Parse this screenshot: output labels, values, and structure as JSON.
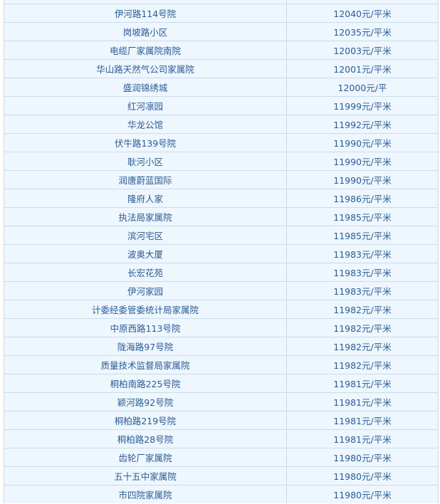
{
  "table": {
    "rows": [
      {
        "name": "伊河路114号院",
        "price": "12040元/平米"
      },
      {
        "name": "岗坡路小区",
        "price": "12035元/平米"
      },
      {
        "name": "电缆厂家属院南院",
        "price": "12003元/平米"
      },
      {
        "name": "华山路天然气公司家属院",
        "price": "12001元/平米"
      },
      {
        "name": "盛润锦绣城",
        "price": "12000元/平"
      },
      {
        "name": "红河凛园",
        "price": "11999元/平米"
      },
      {
        "name": "华龙公馆",
        "price": "11992元/平米"
      },
      {
        "name": "伏牛路139号院",
        "price": "11990元/平米"
      },
      {
        "name": "耿河小区",
        "price": "11990元/平米"
      },
      {
        "name": "润唐蔚蓝国际",
        "price": "11990元/平米"
      },
      {
        "name": "隆府人家",
        "price": "11986元/平米"
      },
      {
        "name": "执法局家属院",
        "price": "11985元/平米"
      },
      {
        "name": "滨河宅区",
        "price": "11985元/平米"
      },
      {
        "name": "波奥大厦",
        "price": "11983元/平米"
      },
      {
        "name": "长宏花苑",
        "price": "11983元/平米"
      },
      {
        "name": "伊河家园",
        "price": "11983元/平米"
      },
      {
        "name": "计委经委管委统计局家属院",
        "price": "11982元/平米"
      },
      {
        "name": "中原西路113号院",
        "price": "11982元/平米"
      },
      {
        "name": "陇海路97号院",
        "price": "11982元/平米"
      },
      {
        "name": "质量技术监督局家属院",
        "price": "11982元/平米"
      },
      {
        "name": "桐柏南路225号院",
        "price": "11981元/平米"
      },
      {
        "name": "颖河路92号院",
        "price": "11981元/平米"
      },
      {
        "name": "桐柏路219号院",
        "price": "11981元/平米"
      },
      {
        "name": "桐柏路28号院",
        "price": "11981元/平米"
      },
      {
        "name": "齿轮厂家属院",
        "price": "11980元/平米"
      },
      {
        "name": "五十五中家属院",
        "price": "11980元/平米"
      },
      {
        "name": "市四院家属院",
        "price": "11980元/平米"
      }
    ]
  }
}
